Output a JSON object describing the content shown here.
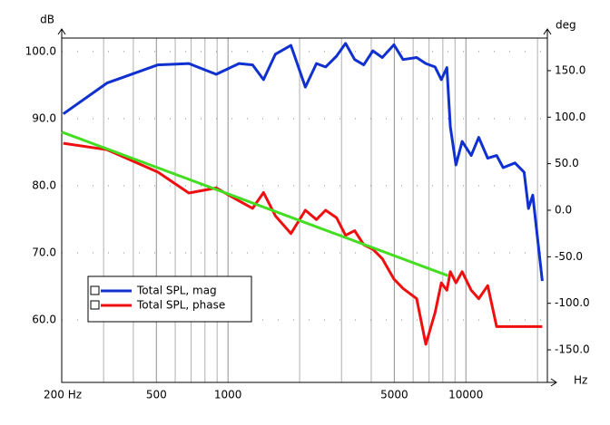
{
  "chart_data": {
    "type": "line",
    "ylabel": "dB",
    "y2label": "deg",
    "xlabel": "Hz",
    "xscale": "log",
    "xlim": [
      200,
      22000
    ],
    "ylim": [
      50.7,
      102
    ],
    "y2lim": [
      -185,
      185
    ],
    "xticks": [
      {
        "value": 200,
        "label": "200 Hz"
      },
      500,
      1000,
      5000,
      10000
    ],
    "xminor": [
      300,
      400,
      600,
      700,
      800,
      900,
      2000,
      3000,
      4000,
      6000,
      7000,
      8000,
      9000,
      20000
    ],
    "yticks": [
      {
        "value": 60,
        "label": "60.0"
      },
      {
        "value": 70,
        "label": "70.0"
      },
      {
        "value": 80,
        "label": "80.0"
      },
      {
        "value": 90,
        "label": "90.0"
      },
      {
        "value": 100,
        "label": "100.0"
      }
    ],
    "y2ticks": [
      {
        "value": -150,
        "label": "-150.0"
      },
      {
        "value": -100,
        "label": "-100.0"
      },
      {
        "value": -50,
        "label": "-50.0"
      },
      {
        "value": 0,
        "label": "0.0"
      },
      {
        "value": 50,
        "label": "50.0"
      },
      {
        "value": 100,
        "label": "100.0"
      },
      {
        "value": 150,
        "label": "150.0"
      }
    ],
    "grid": true,
    "legend": "lower left",
    "series": [
      {
        "name": "Total SPL, mag",
        "color": "#1030d0",
        "axis": "y",
        "x": [
          203,
          310,
          507,
          684,
          892,
          1112,
          1269,
          1410,
          1582,
          1838,
          2115,
          2353,
          2572,
          2859,
          3121,
          3407,
          3720,
          4066,
          4448,
          4982,
          5444,
          6210,
          6785,
          7420,
          7884,
          8315,
          8600,
          9080,
          9640,
          10530,
          11320,
          12350,
          13460,
          14340,
          16080,
          17570,
          18330,
          19100,
          20950
        ],
        "values": [
          90.7,
          95.3,
          98.0,
          98.2,
          96.6,
          98.2,
          98.0,
          95.8,
          99.6,
          100.9,
          94.7,
          98.2,
          97.7,
          99.3,
          101.2,
          98.8,
          98.0,
          100.1,
          99.1,
          101.0,
          98.8,
          99.1,
          98.2,
          97.7,
          95.8,
          97.6,
          88.8,
          83.1,
          86.6,
          84.5,
          87.2,
          84.1,
          84.5,
          82.7,
          83.4,
          82.0,
          76.6,
          78.6,
          65.8
        ]
      },
      {
        "name": "Total SPL, phase",
        "color": "#ee1010",
        "axis": "y2",
        "x": [
          203,
          310,
          507,
          684,
          892,
          1112,
          1269,
          1410,
          1582,
          1838,
          2115,
          2353,
          2572,
          2859,
          3121,
          3407,
          3720,
          4066,
          4448,
          4982,
          5444,
          6210,
          6785,
          7420,
          7884,
          8315,
          8600,
          9080,
          9640,
          10530,
          11320,
          12350,
          13460,
          14340,
          16080,
          17570,
          18330,
          19100,
          20950
        ],
        "values": [
          72,
          65,
          41,
          18.5,
          24,
          10,
          2,
          19,
          -6,
          -25,
          0,
          -10,
          0,
          -8,
          -27,
          -22,
          -37,
          -42,
          -52,
          -74,
          -84,
          -95,
          -144,
          -110,
          -78,
          -86,
          -66,
          -78,
          -66,
          -86,
          -95,
          -81,
          -125,
          -125,
          -125,
          -125,
          -125,
          -125,
          -125
        ]
      },
      {
        "color": "#44dd22",
        "axis": "y",
        "x": [
          200,
          8400
        ],
        "values": [
          88.0,
          66.6
        ]
      }
    ]
  }
}
